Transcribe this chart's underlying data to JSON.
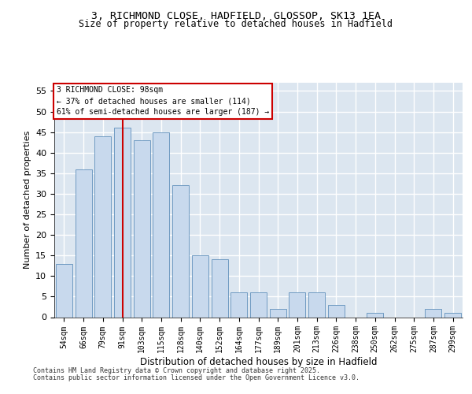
{
  "title_line1": "3, RICHMOND CLOSE, HADFIELD, GLOSSOP, SK13 1EA",
  "title_line2": "Size of property relative to detached houses in Hadfield",
  "xlabel": "Distribution of detached houses by size in Hadfield",
  "ylabel": "Number of detached properties",
  "categories": [
    "54sqm",
    "66sqm",
    "79sqm",
    "91sqm",
    "103sqm",
    "115sqm",
    "128sqm",
    "140sqm",
    "152sqm",
    "164sqm",
    "177sqm",
    "189sqm",
    "201sqm",
    "213sqm",
    "226sqm",
    "238sqm",
    "250sqm",
    "262sqm",
    "275sqm",
    "287sqm",
    "299sqm"
  ],
  "values": [
    13,
    36,
    44,
    46,
    43,
    45,
    32,
    15,
    14,
    6,
    6,
    2,
    6,
    6,
    3,
    0,
    1,
    0,
    0,
    2,
    1
  ],
  "bar_color": "#c8d9ed",
  "bar_edge_color": "#6090bb",
  "background_color": "#dce6f0",
  "grid_color": "#ffffff",
  "annotation_text": "3 RICHMOND CLOSE: 98sqm\n← 37% of detached houses are smaller (114)\n61% of semi-detached houses are larger (187) →",
  "vline_x": 3,
  "vline_color": "#cc0000",
  "ylim": [
    0,
    57
  ],
  "yticks": [
    0,
    5,
    10,
    15,
    20,
    25,
    30,
    35,
    40,
    45,
    50,
    55
  ],
  "footer_line1": "Contains HM Land Registry data © Crown copyright and database right 2025.",
  "footer_line2": "Contains public sector information licensed under the Open Government Licence v3.0.",
  "fig_bg": "#ffffff"
}
